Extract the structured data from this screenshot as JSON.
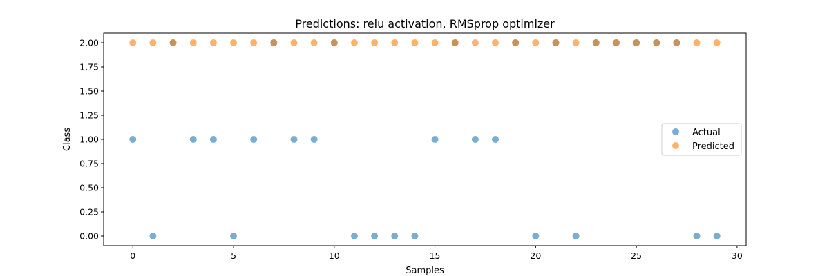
{
  "chart_data": {
    "type": "scatter",
    "title": "Predictions: relu activation, RMSprop optimizer",
    "xlabel": "Samples",
    "ylabel": "Class",
    "xlim": [
      -1.45,
      30.45
    ],
    "ylim": [
      -0.1,
      2.1
    ],
    "xticks": [
      0,
      5,
      10,
      15,
      20,
      25,
      30
    ],
    "xtick_labels": [
      "0",
      "5",
      "10",
      "15",
      "20",
      "25",
      "30"
    ],
    "yticks": [
      0.0,
      0.25,
      0.5,
      0.75,
      1.0,
      1.25,
      1.5,
      1.75,
      2.0
    ],
    "ytick_labels": [
      "0.00",
      "0.25",
      "0.50",
      "0.75",
      "1.00",
      "1.25",
      "1.50",
      "1.75",
      "2.00"
    ],
    "grid": false,
    "legend_position": "center-right",
    "series": [
      {
        "name": "Actual",
        "color": "#1f77b4",
        "x": [
          0,
          1,
          2,
          3,
          4,
          5,
          6,
          7,
          8,
          9,
          10,
          11,
          12,
          13,
          14,
          15,
          16,
          17,
          18,
          19,
          20,
          21,
          22,
          23,
          24,
          25,
          26,
          27,
          28,
          29
        ],
        "y": [
          1,
          0,
          2,
          1,
          1,
          0,
          1,
          2,
          1,
          1,
          2,
          0,
          0,
          0,
          0,
          1,
          2,
          1,
          1,
          2,
          0,
          2,
          0,
          2,
          2,
          2,
          2,
          2,
          0,
          0
        ]
      },
      {
        "name": "Predicted",
        "color": "#ff7f0e",
        "x": [
          0,
          1,
          2,
          3,
          4,
          5,
          6,
          7,
          8,
          9,
          10,
          11,
          12,
          13,
          14,
          15,
          16,
          17,
          18,
          19,
          20,
          21,
          22,
          23,
          24,
          25,
          26,
          27,
          28,
          29
        ],
        "y": [
          2,
          2,
          2,
          2,
          2,
          2,
          2,
          2,
          2,
          2,
          2,
          2,
          2,
          2,
          2,
          2,
          2,
          2,
          2,
          2,
          2,
          2,
          2,
          2,
          2,
          2,
          2,
          2,
          2,
          2
        ]
      }
    ]
  }
}
